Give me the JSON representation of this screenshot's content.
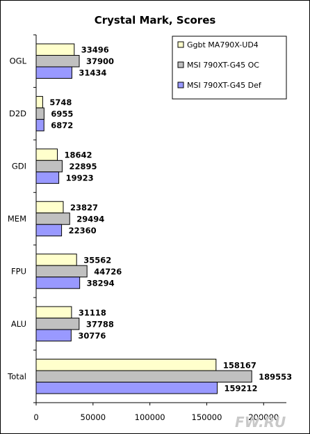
{
  "chart_data": {
    "type": "bar",
    "orientation": "horizontal",
    "title": "Crystal Mark, Scores",
    "xlabel": "",
    "ylabel": "",
    "categories": [
      "OGL",
      "D2D",
      "GDI",
      "MEM",
      "FPU",
      "ALU",
      "Total"
    ],
    "series": [
      {
        "name": "Ggbt MA790X-UD4",
        "color": "#ffffcc",
        "values": [
          33496,
          5748,
          18642,
          23827,
          35562,
          31118,
          158167
        ]
      },
      {
        "name": "MSI 790XT-G45  OC",
        "color": "#c0c0c0",
        "values": [
          37900,
          6955,
          22895,
          29494,
          44726,
          37788,
          189553
        ]
      },
      {
        "name": "MSI 790XT-G45  Def",
        "color": "#9999ff",
        "values": [
          31434,
          6872,
          19923,
          22360,
          38294,
          30776,
          159212
        ]
      }
    ],
    "xlim": [
      0,
      220000
    ],
    "xticks": [
      "0",
      "50000",
      "100000",
      "150000",
      "200000"
    ],
    "grid": false,
    "legend_position": "top-right"
  },
  "watermark": "FW.RU"
}
